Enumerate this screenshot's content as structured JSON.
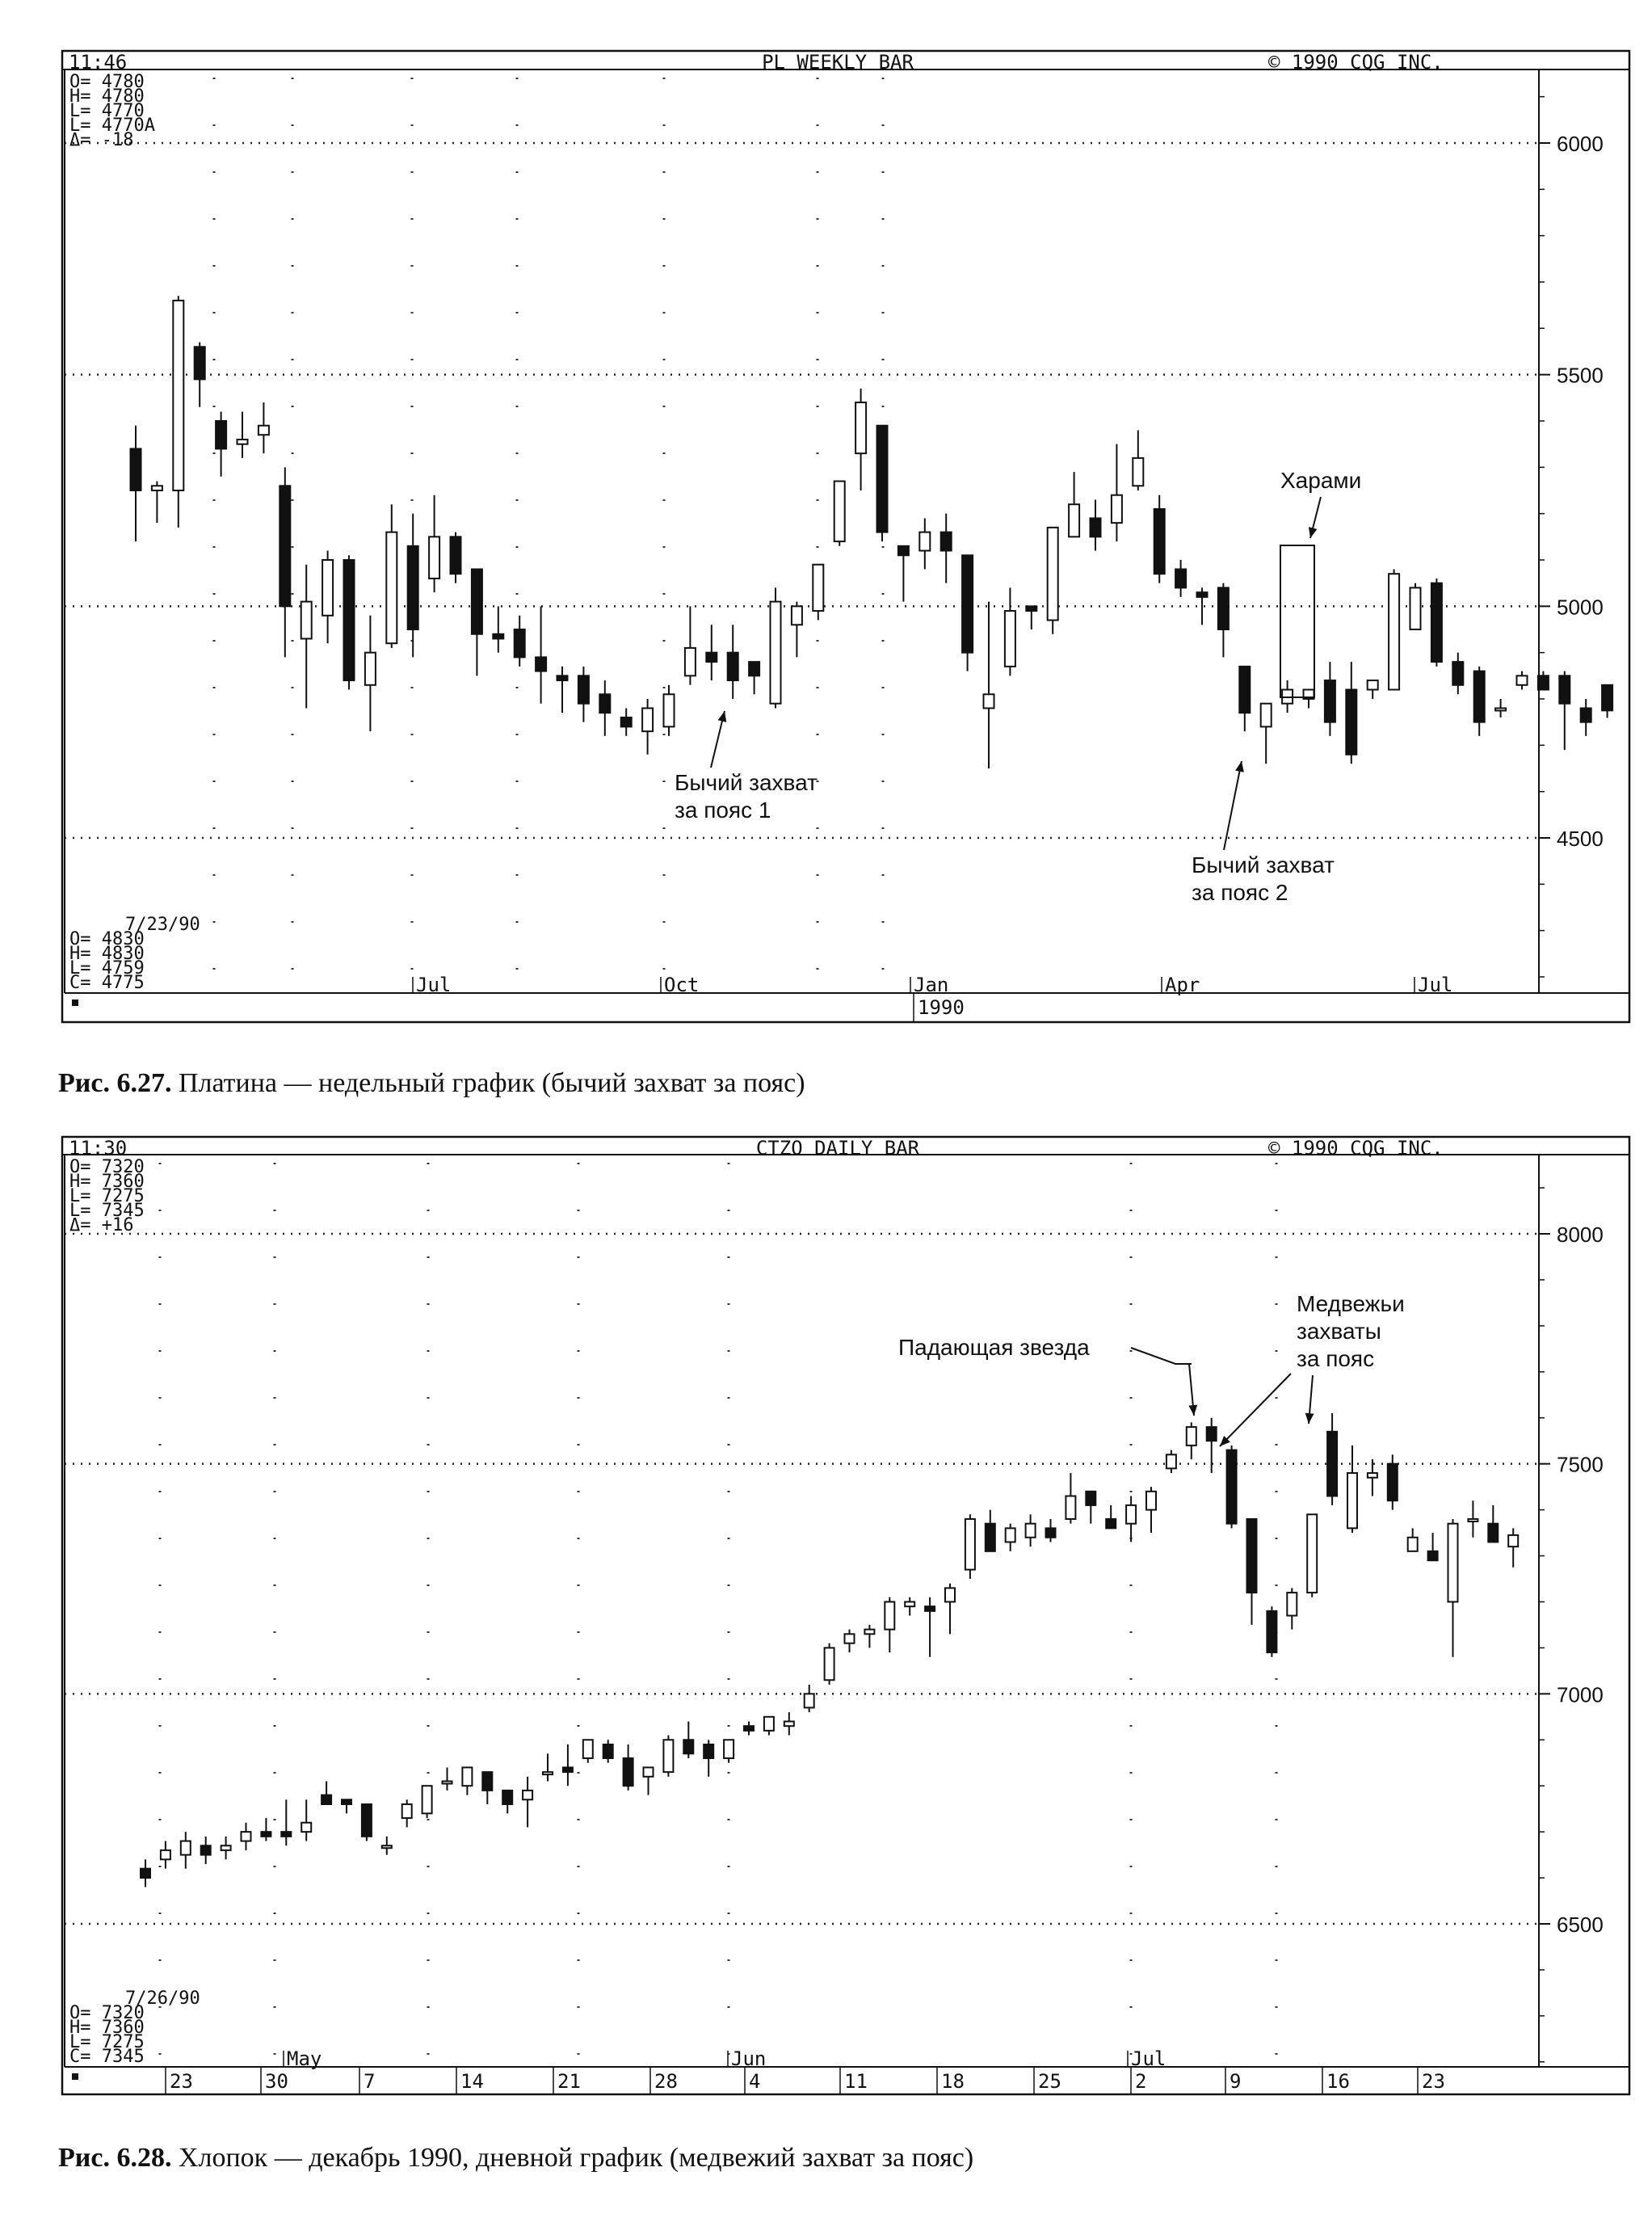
{
  "charts": [
    {
      "header": {
        "time": "11:46",
        "title": "PL WEEKLY BAR",
        "copyright": "©  1990 CQG INC."
      },
      "quote": [
        "O= 4780",
        "H= 4780",
        "L= 4770",
        "L= 4770A",
        "Δ=  -18"
      ],
      "last_bar": [
        "7/23/90",
        "O=  4830",
        "H=  4830",
        "L=  4759",
        "C=  4775"
      ],
      "x_labels": [
        "Jul",
        "Oct",
        "Jan",
        "Apr",
        "Jul"
      ],
      "bottom_labels": [
        "1990"
      ],
      "annotations": [
        "Бычий захват",
        "за пояс 1",
        "Бычий захват",
        "за пояс 2",
        "Харами"
      ],
      "caption_bold": "Рис. 6.27.",
      "caption_text": " Платина — недельный график (бычий захват за пояс)"
    },
    {
      "header": {
        "time": "11:30",
        "title": "CTZO DAILY BAR",
        "copyright": "©  1990 CQG INC."
      },
      "quote": [
        "O= 7320",
        "H= 7360",
        "L= 7275",
        "L= 7345",
        "Δ=  +16"
      ],
      "last_bar": [
        "7/26/90",
        "O=  7320",
        "H=  7360",
        "L=  7275",
        "C=  7345"
      ],
      "x_labels": [
        "May",
        "Jun",
        "Jul"
      ],
      "bottom_labels": [
        "23",
        "30",
        "7",
        "14",
        "21",
        "28",
        "4",
        "11",
        "18",
        "25",
        "2",
        "9",
        "16",
        "23"
      ],
      "annotations": [
        "Падающая звезда",
        "Медвежьи",
        "захваты",
        "за пояс"
      ],
      "caption_bold": "Рис. 6.28.",
      "caption_text": " Хлопок — декабрь 1990, дневной график (медвежий захват за пояс)"
    }
  ],
  "chart_data": [
    {
      "type": "candlestick",
      "title": "PL WEEKLY BAR",
      "y_ticks": [
        6000,
        5500,
        5000,
        4500
      ],
      "ylim": [
        4200,
        6300
      ],
      "grid": "dotted",
      "bars": [
        [
          5340,
          5390,
          5140,
          5250
        ],
        [
          5250,
          5270,
          5180,
          5260
        ],
        [
          5250,
          5670,
          5170,
          5660
        ],
        [
          5560,
          5570,
          5430,
          5490
        ],
        [
          5400,
          5420,
          5280,
          5340
        ],
        [
          5350,
          5420,
          5320,
          5360
        ],
        [
          5370,
          5440,
          5330,
          5390
        ],
        [
          5260,
          5300,
          4890,
          5000
        ],
        [
          4930,
          5090,
          4780,
          5010
        ],
        [
          4980,
          5120,
          4920,
          5100
        ],
        [
          5100,
          5110,
          4820,
          4840
        ],
        [
          4830,
          4980,
          4730,
          4900
        ],
        [
          4920,
          5220,
          4910,
          5160
        ],
        [
          5130,
          5200,
          4890,
          4950
        ],
        [
          5060,
          5240,
          5030,
          5150
        ],
        [
          5150,
          5160,
          5050,
          5070
        ],
        [
          5080,
          5080,
          4850,
          4940
        ],
        [
          4940,
          5000,
          4900,
          4930
        ],
        [
          4950,
          4980,
          4870,
          4890
        ],
        [
          4890,
          5000,
          4790,
          4860
        ],
        [
          4850,
          4870,
          4770,
          4840
        ],
        [
          4850,
          4870,
          4750,
          4790
        ],
        [
          4810,
          4840,
          4720,
          4770
        ],
        [
          4760,
          4780,
          4720,
          4740
        ],
        [
          4730,
          4800,
          4680,
          4780
        ],
        [
          4740,
          4830,
          4720,
          4810
        ],
        [
          4850,
          5000,
          4830,
          4910
        ],
        [
          4900,
          4960,
          4840,
          4880
        ],
        [
          4900,
          4960,
          4800,
          4840
        ],
        [
          4880,
          4880,
          4810,
          4850
        ],
        [
          4790,
          5040,
          4780,
          5010
        ],
        [
          4960,
          5010,
          4890,
          5000
        ],
        [
          4990,
          5090,
          4970,
          5090
        ],
        [
          5140,
          5260,
          5130,
          5270
        ],
        [
          5330,
          5470,
          5250,
          5440
        ],
        [
          5390,
          5380,
          5140,
          5160
        ],
        [
          5130,
          5100,
          5010,
          5110
        ],
        [
          5120,
          5190,
          5080,
          5160
        ],
        [
          5160,
          5200,
          5050,
          5120
        ],
        [
          5110,
          5110,
          4860,
          4900
        ],
        [
          4780,
          5010,
          4650,
          4810
        ],
        [
          4870,
          5040,
          4850,
          4990
        ],
        [
          5000,
          5000,
          4950,
          4990
        ],
        [
          4970,
          5170,
          4940,
          5170
        ],
        [
          5150,
          5290,
          5180,
          5220
        ],
        [
          5190,
          5230,
          5120,
          5150
        ],
        [
          5180,
          5350,
          5140,
          5240
        ],
        [
          5260,
          5380,
          5250,
          5320
        ],
        [
          5210,
          5240,
          5050,
          5070
        ],
        [
          5080,
          5100,
          5020,
          5040
        ],
        [
          5030,
          5040,
          4960,
          5020
        ],
        [
          5040,
          5050,
          4890,
          4950
        ],
        [
          4870,
          4850,
          4730,
          4770
        ],
        [
          4740,
          4790,
          4660,
          4790
        ],
        [
          4790,
          4840,
          4770,
          4820
        ],
        [
          4800,
          4820,
          4780,
          4820
        ],
        [
          4840,
          4880,
          4720,
          4750
        ],
        [
          4820,
          4880,
          4660,
          4680
        ],
        [
          4820,
          4840,
          4800,
          4840
        ],
        [
          4820,
          5080,
          4830,
          5070
        ],
        [
          4950,
          5050,
          4950,
          5040
        ],
        [
          5050,
          5060,
          4870,
          4880
        ],
        [
          4880,
          4900,
          4810,
          4830
        ],
        [
          4860,
          4870,
          4720,
          4750
        ],
        [
          4780,
          4800,
          4760,
          4780
        ],
        [
          4830,
          4860,
          4820,
          4850
        ],
        [
          4850,
          4860,
          4820,
          4820
        ],
        [
          4850,
          4860,
          4690,
          4790
        ],
        [
          4780,
          4800,
          4720,
          4750
        ],
        [
          4830,
          4830,
          4759,
          4775
        ]
      ]
    },
    {
      "type": "candlestick",
      "title": "CTZO DAILY BAR",
      "y_ticks": [
        8000,
        7500,
        7000,
        6500
      ],
      "ylim": [
        6200,
        8220
      ],
      "grid": "dotted",
      "bars": [
        [
          6620,
          6640,
          6580,
          6600
        ],
        [
          6640,
          6680,
          6620,
          6660
        ],
        [
          6650,
          6700,
          6620,
          6680
        ],
        [
          6670,
          6690,
          6630,
          6650
        ],
        [
          6660,
          6690,
          6640,
          6670
        ],
        [
          6680,
          6720,
          6660,
          6700
        ],
        [
          6700,
          6730,
          6680,
          6690
        ],
        [
          6700,
          6770,
          6670,
          6690
        ],
        [
          6700,
          6770,
          6680,
          6720
        ],
        [
          6780,
          6810,
          6760,
          6760
        ],
        [
          6770,
          6770,
          6740,
          6760
        ],
        [
          6760,
          6720,
          6680,
          6690
        ],
        [
          6670,
          6690,
          6650,
          6670
        ],
        [
          6730,
          6770,
          6710,
          6760
        ],
        [
          6740,
          6800,
          6730,
          6800
        ],
        [
          6810,
          6840,
          6790,
          6810
        ],
        [
          6800,
          6840,
          6780,
          6840
        ],
        [
          6830,
          6830,
          6760,
          6790
        ],
        [
          6790,
          6790,
          6740,
          6760
        ],
        [
          6770,
          6820,
          6710,
          6790
        ],
        [
          6830,
          6870,
          6810,
          6830
        ],
        [
          6840,
          6890,
          6800,
          6830
        ],
        [
          6860,
          6900,
          6850,
          6900
        ],
        [
          6890,
          6900,
          6850,
          6860
        ],
        [
          6860,
          6890,
          6790,
          6800
        ],
        [
          6820,
          6840,
          6780,
          6840
        ],
        [
          6830,
          6910,
          6820,
          6900
        ],
        [
          6900,
          6940,
          6860,
          6870
        ],
        [
          6890,
          6900,
          6820,
          6860
        ],
        [
          6860,
          6900,
          6850,
          6900
        ],
        [
          6930,
          6940,
          6910,
          6920
        ],
        [
          6920,
          6950,
          6910,
          6950
        ],
        [
          6930,
          6960,
          6910,
          6940
        ],
        [
          6970,
          7020,
          6960,
          7000
        ],
        [
          7030,
          7110,
          7020,
          7100
        ],
        [
          7110,
          7140,
          7090,
          7130
        ],
        [
          7130,
          7150,
          7100,
          7140
        ],
        [
          7140,
          7210,
          7090,
          7200
        ],
        [
          7190,
          7210,
          7170,
          7200
        ],
        [
          7190,
          7210,
          7080,
          7180
        ],
        [
          7200,
          7240,
          7130,
          7230
        ],
        [
          7270,
          7390,
          7250,
          7380
        ],
        [
          7370,
          7400,
          7310,
          7310
        ],
        [
          7330,
          7370,
          7310,
          7360
        ],
        [
          7340,
          7390,
          7320,
          7370
        ],
        [
          7360,
          7380,
          7330,
          7340
        ],
        [
          7380,
          7480,
          7370,
          7430
        ],
        [
          7440,
          7440,
          7370,
          7410
        ],
        [
          7380,
          7410,
          7360,
          7360
        ],
        [
          7370,
          7430,
          7330,
          7410
        ],
        [
          7400,
          7450,
          7350,
          7440
        ],
        [
          7490,
          7530,
          7480,
          7520
        ],
        [
          7540,
          7590,
          7510,
          7580
        ],
        [
          7580,
          7600,
          7480,
          7550
        ],
        [
          7530,
          7540,
          7360,
          7370
        ],
        [
          7380,
          7380,
          7150,
          7220
        ],
        [
          7180,
          7190,
          7080,
          7090
        ],
        [
          7170,
          7230,
          7140,
          7220
        ],
        [
          7220,
          7390,
          7210,
          7390
        ],
        [
          7570,
          7610,
          7410,
          7430
        ],
        [
          7360,
          7540,
          7350,
          7480
        ],
        [
          7470,
          7510,
          7430,
          7480
        ],
        [
          7500,
          7520,
          7400,
          7420
        ],
        [
          7310,
          7360,
          7320,
          7340
        ],
        [
          7310,
          7350,
          7290,
          7290
        ],
        [
          7200,
          7380,
          7080,
          7370
        ],
        [
          7380,
          7420,
          7340,
          7380
        ],
        [
          7370,
          7410,
          7330,
          7330
        ],
        [
          7320,
          7360,
          7275,
          7345
        ]
      ]
    }
  ]
}
